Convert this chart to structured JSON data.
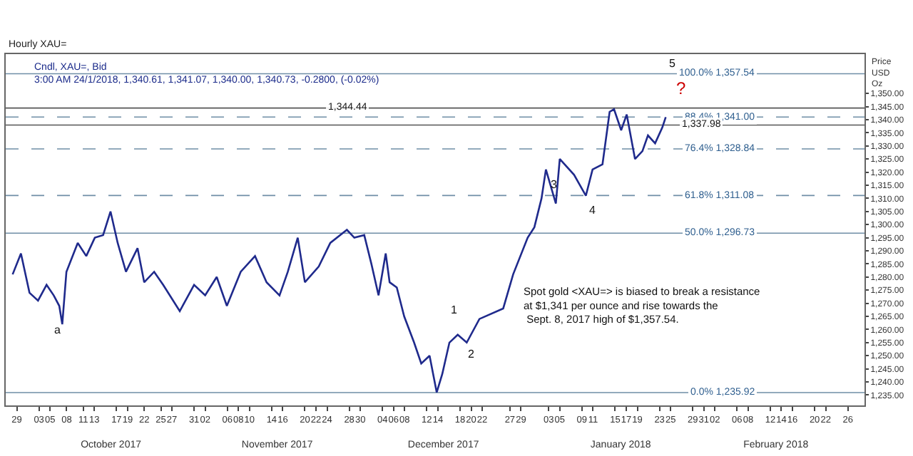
{
  "chart_data": {
    "type": "line",
    "title": "Hourly XAU=",
    "subtitle": "Cndl, XAU=, Bid\n3:00 AM 24/1/2018, 1,340.61, 1,341.07, 1,340.00, 1,340.73, -0.2800, (-0.02%)",
    "ylabel": "Price\nUSD\nOz",
    "x": [
      "2017-09-28T06:00",
      "2017-09-29T18:00",
      "2017-10-01T07:00",
      "2017-10-02T20:00",
      "2017-10-04T09:00",
      "2017-10-05T16:00",
      "2017-10-06T16:00",
      "2017-10-07T05:00",
      "2017-10-07T23:00",
      "2017-10-10T00:00",
      "2017-10-11T13:00",
      "2017-10-13T02:00",
      "2017-10-14T14:00",
      "2017-10-15T22:00",
      "2017-10-17T05:00",
      "2017-10-18T17:00",
      "2017-10-20T19:00",
      "2017-10-22T00:00",
      "2017-10-23T19:00",
      "2017-10-25T10:00",
      "2017-10-28T10:00",
      "2017-10-31T00:00",
      "2017-11-02T00:00",
      "2017-11-04T02:00",
      "2017-11-05T22:00",
      "2017-11-08T10:00",
      "2017-11-11T00:00",
      "2017-11-13T02:00",
      "2017-11-15T10:00",
      "2017-11-16T22:00",
      "2017-11-18T17:00",
      "2017-11-20T00:00",
      "2017-11-22T12:00",
      "2017-11-24T14:00",
      "2017-11-27T14:00",
      "2017-11-28T22:00",
      "2017-11-30T17:00",
      "2017-12-02T00:00",
      "2017-12-03T07:00",
      "2017-12-04T14:00",
      "2017-12-05T07:00",
      "2017-12-06T14:00",
      "2017-12-07T22:00",
      "2017-12-09T17:00",
      "2017-12-11T00:00",
      "2017-12-12T12:00",
      "2017-12-13T19:00",
      "2017-12-14T19:00",
      "2017-12-16T02:00",
      "2017-12-17T14:00",
      "2017-12-19T05:00",
      "2017-12-21T12:00",
      "2017-12-25T19:00",
      "2017-12-27T14:00",
      "2017-12-30T05:00",
      "2017-12-31T10:00",
      "2018-01-01T17:00",
      "2018-01-02T12:00",
      "2018-01-04T07:00",
      "2018-01-05T00:00",
      "2018-01-07T14:00",
      "2018-01-09T17:00",
      "2018-01-10T22:00",
      "2018-01-12T17:00",
      "2018-01-14T00:00",
      "2018-01-14T19:00",
      "2018-01-16T02:00",
      "2018-01-17T02:00",
      "2018-01-18T14:00",
      "2018-01-19T22:00",
      "2018-01-20T22:00",
      "2018-01-22T05:00",
      "2018-01-23T12:00",
      "2018-01-24T03:00"
    ],
    "series": [
      {
        "color": "#1f2a8c",
        "values": [
          1281,
          1289,
          1274,
          1271,
          1277,
          1273,
          1269,
          1262,
          1282,
          1293,
          1288,
          1295,
          1296,
          1305,
          1293,
          1282,
          1291,
          1278,
          1282,
          1277,
          1267,
          1277,
          1273,
          1280,
          1269,
          1282,
          1288,
          1278,
          1273,
          1282,
          1295,
          1278,
          1284,
          1293,
          1298,
          1295,
          1296,
          1285,
          1273,
          1289,
          1278,
          1276,
          1265,
          1255,
          1247,
          1250,
          1236,
          1243,
          1255,
          1258,
          1255,
          1264,
          1268,
          1281,
          1295,
          1299,
          1310,
          1321,
          1308,
          1325,
          1319,
          1311,
          1321,
          1323,
          1343,
          1344,
          1336,
          1342,
          1325,
          1328,
          1334,
          1331,
          1337,
          1341
        ]
      }
    ],
    "xlim": [
      "2017-09-27",
      "2018-03-01"
    ],
    "xticks": [
      {
        "value": "2017-09-29",
        "label": "29"
      },
      {
        "value": "2017-10-03",
        "label": "03"
      },
      {
        "value": "2017-10-05",
        "label": "05"
      },
      {
        "value": "2017-10-08",
        "label": "08"
      },
      {
        "value": "2017-10-11",
        "label": "11"
      },
      {
        "value": "2017-10-13",
        "label": "13"
      },
      {
        "value": "2017-10-17",
        "label": "17"
      },
      {
        "value": "2017-10-19",
        "label": "19"
      },
      {
        "value": "2017-10-22",
        "label": "22"
      },
      {
        "value": "2017-10-25",
        "label": "25"
      },
      {
        "value": "2017-10-27",
        "label": "27"
      },
      {
        "value": "2017-10-31",
        "label": "31"
      },
      {
        "value": "2017-11-02",
        "label": "02"
      },
      {
        "value": "2017-11-06",
        "label": "06"
      },
      {
        "value": "2017-11-08",
        "label": "08"
      },
      {
        "value": "2017-11-10",
        "label": "10"
      },
      {
        "value": "2017-11-14",
        "label": "14"
      },
      {
        "value": "2017-11-16",
        "label": "16"
      },
      {
        "value": "2017-11-20",
        "label": "20"
      },
      {
        "value": "2017-11-22",
        "label": "22"
      },
      {
        "value": "2017-11-24",
        "label": "24"
      },
      {
        "value": "2017-11-28",
        "label": "28"
      },
      {
        "value": "2017-11-30",
        "label": "30"
      },
      {
        "value": "2017-12-04",
        "label": "04"
      },
      {
        "value": "2017-12-06",
        "label": "06"
      },
      {
        "value": "2017-12-08",
        "label": "08"
      },
      {
        "value": "2017-12-12",
        "label": "12"
      },
      {
        "value": "2017-12-14",
        "label": "14"
      },
      {
        "value": "2017-12-18",
        "label": "18"
      },
      {
        "value": "2017-12-20",
        "label": "20"
      },
      {
        "value": "2017-12-22",
        "label": "22"
      },
      {
        "value": "2017-12-27",
        "label": "27"
      },
      {
        "value": "2017-12-29",
        "label": "29"
      },
      {
        "value": "2018-01-03",
        "label": "03"
      },
      {
        "value": "2018-01-05",
        "label": "05"
      },
      {
        "value": "2018-01-09",
        "label": "09"
      },
      {
        "value": "2018-01-11",
        "label": "11"
      },
      {
        "value": "2018-01-15",
        "label": "15"
      },
      {
        "value": "2018-01-17",
        "label": "17"
      },
      {
        "value": "2018-01-19",
        "label": "19"
      },
      {
        "value": "2018-01-23",
        "label": "23"
      },
      {
        "value": "2018-01-25",
        "label": "25"
      },
      {
        "value": "2018-01-29",
        "label": "29"
      },
      {
        "value": "2018-01-31",
        "label": "31"
      },
      {
        "value": "2018-02-02",
        "label": "02"
      },
      {
        "value": "2018-02-06",
        "label": "06"
      },
      {
        "value": "2018-02-08",
        "label": "08"
      },
      {
        "value": "2018-02-12",
        "label": "12"
      },
      {
        "value": "2018-02-14",
        "label": "14"
      },
      {
        "value": "2018-02-16",
        "label": "16"
      },
      {
        "value": "2018-02-20",
        "label": "20"
      },
      {
        "value": "2018-02-22",
        "label": "22"
      },
      {
        "value": "2018-02-26",
        "label": "26"
      }
    ],
    "x2lim": [
      "2017-09-27",
      "2018-03-01"
    ],
    "x2ticks": [
      {
        "value": "2017-10-16",
        "label": "October 2017"
      },
      {
        "value": "2017-11-15",
        "label": "November 2017"
      },
      {
        "value": "2017-12-15",
        "label": "December 2017"
      },
      {
        "value": "2018-01-16",
        "label": "January 2018"
      },
      {
        "value": "2018-02-13",
        "label": "February 2018"
      }
    ],
    "ylim": [
      1231,
      1365
    ],
    "yticks": [
      {
        "value": 1235,
        "label": "1,235.00"
      },
      {
        "value": 1240,
        "label": "1,240.00"
      },
      {
        "value": 1245,
        "label": "1,245.00"
      },
      {
        "value": 1250,
        "label": "1,250.00"
      },
      {
        "value": 1255,
        "label": "1,255.00"
      },
      {
        "value": 1260,
        "label": "1,260.00"
      },
      {
        "value": 1265,
        "label": "1,265.00"
      },
      {
        "value": 1270,
        "label": "1,270.00"
      },
      {
        "value": 1275,
        "label": "1,275.00"
      },
      {
        "value": 1280,
        "label": "1,280.00"
      },
      {
        "value": 1285,
        "label": "1,285.00"
      },
      {
        "value": 1290,
        "label": "1,290.00"
      },
      {
        "value": 1295,
        "label": "1,295.00"
      },
      {
        "value": 1300,
        "label": "1,300.00"
      },
      {
        "value": 1305,
        "label": "1,305.00"
      },
      {
        "value": 1310,
        "label": "1,310.00"
      },
      {
        "value": 1315,
        "label": "1,315.00"
      },
      {
        "value": 1320,
        "label": "1,320.00"
      },
      {
        "value": 1325,
        "label": "1,325.00"
      },
      {
        "value": 1330,
        "label": "1,330.00"
      },
      {
        "value": 1335,
        "label": "1,335.00"
      },
      {
        "value": 1340,
        "label": "1,340.00"
      },
      {
        "value": 1345,
        "label": "1,345.00"
      },
      {
        "value": 1350,
        "label": "1,350.00"
      }
    ],
    "ref_lines": [
      {
        "axis": "y",
        "value": 1357.54,
        "label": "100.0% 1,357.54",
        "color": "#6f8ea6",
        "line_style": "solid"
      },
      {
        "axis": "y",
        "value": 1341.0,
        "label": "88.4% 1,341.00",
        "color": "#6f8ea6",
        "line_style": "dashed"
      },
      {
        "axis": "y",
        "value": 1328.84,
        "label": "76.4% 1,328.84",
        "color": "#6f8ea6",
        "line_style": "dashed"
      },
      {
        "axis": "y",
        "value": 1311.08,
        "label": "61.8% 1,311.08",
        "color": "#6f8ea6",
        "line_style": "dashed"
      },
      {
        "axis": "y",
        "value": 1296.73,
        "label": "50.0% 1,296.73",
        "color": "#6f8ea6",
        "line_style": "solid"
      },
      {
        "axis": "y",
        "value": 1235.92,
        "label": "0.0% 1,235.92",
        "color": "#6f8ea6",
        "line_style": "solid"
      },
      {
        "axis": "y",
        "value": 1344.44,
        "color": "#555555",
        "line_style": "solid"
      },
      {
        "axis": "y",
        "value": 1337.98,
        "color": "#555555",
        "line_style": "solid"
      }
    ],
    "annotations": [
      {
        "text": "a",
        "x": "2017-10-06T12:00",
        "y": 1260
      },
      "1",
      "2",
      "3",
      "4",
      "5",
      "?",
      {
        "text": "1,344.44",
        "x": "2017-11-27T14:00",
        "y": 1344.44
      },
      {
        "text": "1,337.98",
        "x": "2018-01-30T12:00",
        "y": 1337.98
      },
      "Spot gold <XAU=> is biased to break a resistance\nat $1,341 per ounce and rise towards the\n Sept. 8, 2017 high of $1,357.54."
    ]
  }
}
